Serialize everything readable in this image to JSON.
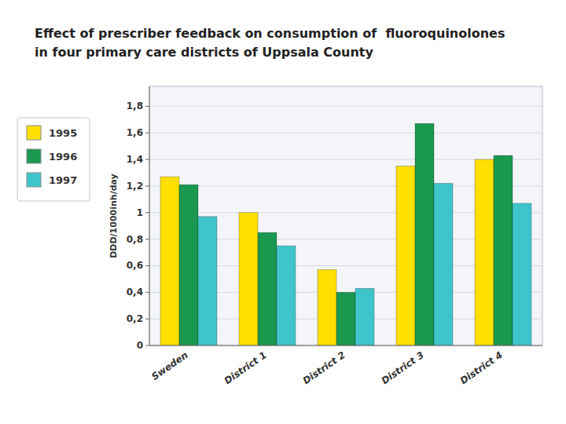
{
  "chart_data": {
    "type": "bar",
    "title": "Effect of prescriber feedback on consumption of  fluoroquinolones",
    "subtitle": "in four primary care districts of Uppsala County",
    "categories": [
      "Sweden",
      "District 1",
      "District 2",
      "District 3",
      "District 4"
    ],
    "series": [
      {
        "name": "1995",
        "color": "#FFE000",
        "values": [
          1.27,
          1.0,
          0.57,
          1.35,
          1.4
        ]
      },
      {
        "name": "1996",
        "color": "#1A9850",
        "values": [
          1.21,
          0.85,
          0.4,
          1.67,
          1.43
        ]
      },
      {
        "name": "1997",
        "color": "#40C4CC",
        "values": [
          0.97,
          0.75,
          0.43,
          1.22,
          1.07
        ]
      }
    ],
    "ylabel": "DDD/1000inh/day",
    "ylim": [
      0,
      1.95
    ],
    "yticks": [
      0,
      {
        "value": 0.2,
        "label": "0,2"
      },
      {
        "value": 0.4,
        "label": "0,4"
      },
      {
        "value": 0.6,
        "label": "0,6"
      },
      {
        "value": 0.8,
        "label": "0,8"
      },
      1,
      {
        "value": 1.2,
        "label": "1,2"
      },
      {
        "value": 1.4,
        "label": "1,4"
      },
      {
        "value": 1.6,
        "label": "1,6"
      },
      {
        "value": 1.8,
        "label": "1,8"
      }
    ],
    "grid": true,
    "legend": "left"
  }
}
